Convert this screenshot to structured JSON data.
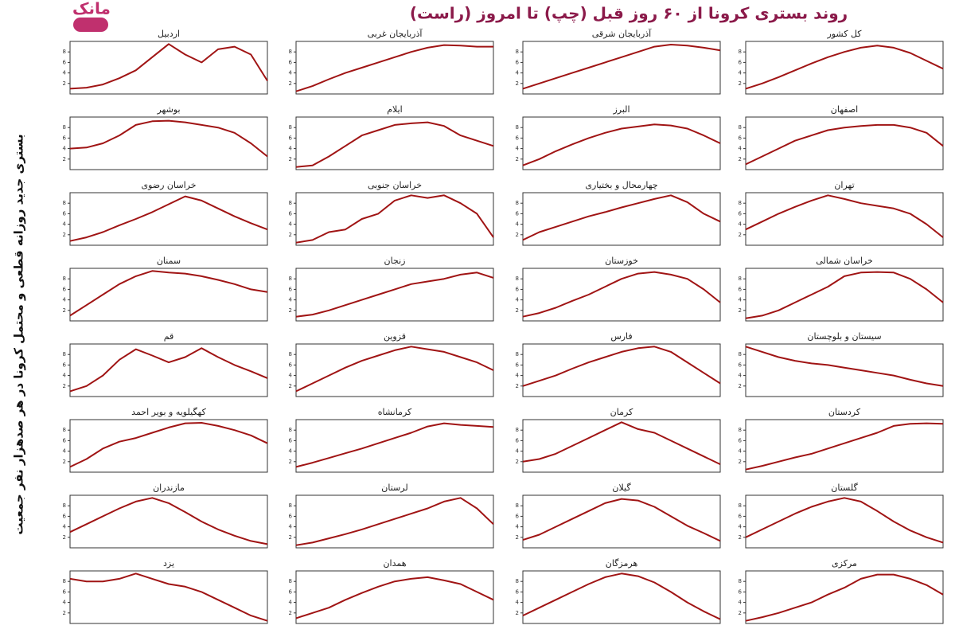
{
  "title": "روند بستری کرونا از ۶۰ روز قبل (چپ) تا امروز (راست)",
  "y_label": "بستری جدید روزانه قطعی و محتمل کرونا در هر صدهزار نفر جمعیت",
  "logo": "مانک",
  "chart_data": [
    {
      "type": "line",
      "title": "کل کشور",
      "color": "#a01414",
      "ylim": [
        0,
        10
      ],
      "yticks": [
        2,
        4,
        6,
        8
      ],
      "values": [
        1,
        2,
        3.2,
        4.5,
        5.8,
        7,
        8,
        8.8,
        9.2,
        8.8,
        7.8,
        6.3,
        4.8
      ]
    },
    {
      "type": "line",
      "title": "آذربایجان شرقی",
      "color": "#a01414",
      "ylim": [
        0,
        10
      ],
      "yticks": [
        2,
        4,
        6,
        8
      ],
      "values": [
        1,
        2,
        3,
        4,
        5,
        6,
        7,
        8,
        9,
        9.4,
        9.2,
        8.8,
        8.3
      ]
    },
    {
      "type": "line",
      "title": "آذربایجان غربی",
      "color": "#a01414",
      "ylim": [
        0,
        10
      ],
      "yticks": [
        2,
        4,
        6,
        8
      ],
      "values": [
        0.5,
        1.5,
        2.8,
        4,
        5,
        6,
        7,
        8,
        8.8,
        9.3,
        9.2,
        9,
        9
      ]
    },
    {
      "type": "line",
      "title": "اردبیل",
      "color": "#a01414",
      "ylim": [
        0,
        10
      ],
      "yticks": [
        2,
        4,
        6,
        8
      ],
      "values": [
        1,
        1.2,
        1.8,
        3,
        4.5,
        7,
        9.5,
        7.5,
        6,
        8.5,
        9,
        7.5,
        2.5
      ]
    },
    {
      "type": "line",
      "title": "اصفهان",
      "color": "#a01414",
      "ylim": [
        0,
        10
      ],
      "yticks": [
        2,
        4,
        6,
        8
      ],
      "values": [
        1,
        2.5,
        4,
        5.5,
        6.5,
        7.5,
        8,
        8.3,
        8.5,
        8.5,
        8,
        7,
        4.5
      ]
    },
    {
      "type": "line",
      "title": "البرز",
      "color": "#a01414",
      "ylim": [
        0,
        10
      ],
      "yticks": [
        2,
        4,
        6,
        8
      ],
      "values": [
        0.8,
        2,
        3.5,
        4.8,
        6,
        7,
        7.8,
        8.2,
        8.6,
        8.4,
        7.8,
        6.5,
        5
      ]
    },
    {
      "type": "line",
      "title": "ایلام",
      "color": "#a01414",
      "ylim": [
        0,
        10
      ],
      "yticks": [
        2,
        4,
        6,
        8
      ],
      "values": [
        0.5,
        0.8,
        2.5,
        4.5,
        6.5,
        7.5,
        8.5,
        8.8,
        9,
        8.3,
        6.5,
        5.5,
        4.5
      ]
    },
    {
      "type": "line",
      "title": "بوشهر",
      "color": "#a01414",
      "ylim": [
        0,
        10
      ],
      "yticks": [
        2,
        4,
        6,
        8
      ],
      "values": [
        4,
        4.2,
        5,
        6.5,
        8.5,
        9.2,
        9.3,
        9,
        8.5,
        8,
        7,
        5,
        2.5
      ]
    },
    {
      "type": "line",
      "title": "تهران",
      "color": "#a01414",
      "ylim": [
        0,
        10
      ],
      "yticks": [
        2,
        4,
        6,
        8
      ],
      "values": [
        3,
        4.5,
        6,
        7.3,
        8.5,
        9.5,
        8.8,
        8,
        7.5,
        7,
        6,
        4,
        1.5
      ]
    },
    {
      "type": "line",
      "title": "چهارمحال و بختیاری",
      "color": "#a01414",
      "ylim": [
        0,
        10
      ],
      "yticks": [
        2,
        4,
        6,
        8
      ],
      "values": [
        1,
        2.5,
        3.5,
        4.5,
        5.5,
        6.3,
        7.2,
        8,
        8.8,
        9.5,
        8.2,
        6,
        4.5
      ]
    },
    {
      "type": "line",
      "title": "خراسان جنوبی",
      "color": "#a01414",
      "ylim": [
        0,
        10
      ],
      "yticks": [
        2,
        4,
        6,
        8
      ],
      "values": [
        0.5,
        1,
        2.5,
        3,
        5,
        6,
        8.5,
        9.5,
        9,
        9.5,
        8,
        6,
        1.5
      ]
    },
    {
      "type": "line",
      "title": "خراسان رضوی",
      "color": "#a01414",
      "ylim": [
        0,
        10
      ],
      "yticks": [
        2,
        4,
        6,
        8
      ],
      "values": [
        0.8,
        1.5,
        2.5,
        3.8,
        5,
        6.3,
        7.8,
        9.3,
        8.5,
        7,
        5.5,
        4.2,
        3
      ]
    },
    {
      "type": "line",
      "title": "خراسان شمالی",
      "color": "#a01414",
      "ylim": [
        0,
        10
      ],
      "yticks": [
        2,
        4,
        6,
        8
      ],
      "values": [
        0.5,
        1,
        2,
        3.5,
        5,
        6.5,
        8.5,
        9.2,
        9.3,
        9.2,
        8,
        6,
        3.5
      ]
    },
    {
      "type": "line",
      "title": "خوزستان",
      "color": "#a01414",
      "ylim": [
        0,
        10
      ],
      "yticks": [
        2,
        4,
        6,
        8
      ],
      "values": [
        0.8,
        1.5,
        2.5,
        3.8,
        5,
        6.5,
        8,
        9,
        9.3,
        8.8,
        8,
        6,
        3.5
      ]
    },
    {
      "type": "line",
      "title": "زنجان",
      "color": "#a01414",
      "ylim": [
        0,
        10
      ],
      "yticks": [
        2,
        4,
        6,
        8
      ],
      "values": [
        0.8,
        1.2,
        2,
        3,
        4,
        5,
        6,
        7,
        7.5,
        8,
        8.8,
        9.2,
        8.2
      ]
    },
    {
      "type": "line",
      "title": "سمنان",
      "color": "#a01414",
      "ylim": [
        0,
        10
      ],
      "yticks": [
        2,
        4,
        6,
        8
      ],
      "values": [
        1,
        3,
        5,
        7,
        8.5,
        9.5,
        9.2,
        9,
        8.5,
        7.8,
        7,
        6,
        5.5
      ]
    },
    {
      "type": "line",
      "title": "سیستان و بلوچستان",
      "color": "#a01414",
      "ylim": [
        0,
        10
      ],
      "yticks": [
        2,
        4,
        6,
        8
      ],
      "values": [
        9.5,
        8.5,
        7.5,
        6.8,
        6.3,
        6,
        5.5,
        5,
        4.5,
        4,
        3.2,
        2.5,
        2
      ]
    },
    {
      "type": "line",
      "title": "فارس",
      "color": "#a01414",
      "ylim": [
        0,
        10
      ],
      "yticks": [
        2,
        4,
        6,
        8
      ],
      "values": [
        2,
        3,
        4,
        5.3,
        6.5,
        7.5,
        8.5,
        9.2,
        9.5,
        8.5,
        6.5,
        4.5,
        2.5
      ]
    },
    {
      "type": "line",
      "title": "قزوین",
      "color": "#a01414",
      "ylim": [
        0,
        10
      ],
      "yticks": [
        2,
        4,
        6,
        8
      ],
      "values": [
        1,
        2.5,
        4,
        5.5,
        6.8,
        7.8,
        8.8,
        9.5,
        9,
        8.5,
        7.5,
        6.5,
        5
      ]
    },
    {
      "type": "line",
      "title": "قم",
      "color": "#a01414",
      "ylim": [
        0,
        10
      ],
      "yticks": [
        2,
        4,
        6,
        8
      ],
      "values": [
        1,
        2,
        4,
        7,
        9,
        7.8,
        6.5,
        7.5,
        9.2,
        7.5,
        6,
        4.8,
        3.5
      ]
    },
    {
      "type": "line",
      "title": "کردستان",
      "color": "#a01414",
      "ylim": [
        0,
        10
      ],
      "yticks": [
        2,
        4,
        6,
        8
      ],
      "values": [
        0.5,
        1.2,
        2,
        2.8,
        3.5,
        4.5,
        5.5,
        6.5,
        7.5,
        8.8,
        9.2,
        9.3,
        9.2
      ]
    },
    {
      "type": "line",
      "title": "کرمان",
      "color": "#a01414",
      "ylim": [
        0,
        10
      ],
      "yticks": [
        2,
        4,
        6,
        8
      ],
      "values": [
        2,
        2.5,
        3.5,
        5,
        6.5,
        8,
        9.5,
        8.2,
        7.5,
        6,
        4.5,
        3,
        1.5
      ]
    },
    {
      "type": "line",
      "title": "کرمانشاه",
      "color": "#a01414",
      "ylim": [
        0,
        10
      ],
      "yticks": [
        2,
        4,
        6,
        8
      ],
      "values": [
        1,
        1.8,
        2.7,
        3.6,
        4.5,
        5.5,
        6.5,
        7.5,
        8.7,
        9.3,
        9,
        8.8,
        8.6
      ]
    },
    {
      "type": "line",
      "title": "کهگیلویه و بویر احمد",
      "color": "#a01414",
      "ylim": [
        0,
        10
      ],
      "yticks": [
        2,
        4,
        6,
        8
      ],
      "values": [
        1,
        2.5,
        4.5,
        5.8,
        6.5,
        7.5,
        8.5,
        9.3,
        9.4,
        8.8,
        8,
        7,
        5.5
      ]
    },
    {
      "type": "line",
      "title": "گلستان",
      "color": "#a01414",
      "ylim": [
        0,
        10
      ],
      "yticks": [
        2,
        4,
        6,
        8
      ],
      "values": [
        2,
        3.5,
        5,
        6.5,
        7.8,
        8.8,
        9.5,
        8.8,
        7,
        5,
        3.3,
        2,
        1
      ]
    },
    {
      "type": "line",
      "title": "گیلان",
      "color": "#a01414",
      "ylim": [
        0,
        10
      ],
      "yticks": [
        2,
        4,
        6,
        8
      ],
      "values": [
        1.5,
        2.5,
        4,
        5.5,
        7,
        8.5,
        9.3,
        9,
        7.8,
        6,
        4.2,
        2.8,
        1.3
      ]
    },
    {
      "type": "line",
      "title": "لرستان",
      "color": "#a01414",
      "ylim": [
        0,
        10
      ],
      "yticks": [
        2,
        4,
        6,
        8
      ],
      "values": [
        0.5,
        1,
        1.8,
        2.6,
        3.5,
        4.5,
        5.5,
        6.5,
        7.5,
        8.8,
        9.5,
        7.5,
        4.5
      ]
    },
    {
      "type": "line",
      "title": "مازندران",
      "color": "#a01414",
      "ylim": [
        0,
        10
      ],
      "yticks": [
        2,
        4,
        6,
        8
      ],
      "values": [
        3,
        4.5,
        6,
        7.5,
        8.8,
        9.5,
        8.5,
        6.8,
        5,
        3.5,
        2.3,
        1.3,
        0.7
      ]
    },
    {
      "type": "line",
      "title": "مرکزی",
      "color": "#a01414",
      "ylim": [
        0,
        10
      ],
      "yticks": [
        2,
        4,
        6,
        8
      ],
      "values": [
        0.5,
        1.2,
        2,
        3,
        4,
        5.5,
        6.8,
        8.5,
        9.3,
        9.3,
        8.5,
        7.3,
        5.5
      ]
    },
    {
      "type": "line",
      "title": "هرمزگان",
      "color": "#a01414",
      "ylim": [
        0,
        10
      ],
      "yticks": [
        2,
        4,
        6,
        8
      ],
      "values": [
        1.5,
        3,
        4.5,
        6,
        7.5,
        8.8,
        9.5,
        9,
        7.8,
        6,
        4,
        2.3,
        0.8
      ]
    },
    {
      "type": "line",
      "title": "همدان",
      "color": "#a01414",
      "ylim": [
        0,
        10
      ],
      "yticks": [
        2,
        4,
        6,
        8
      ],
      "values": [
        1,
        2,
        3,
        4.5,
        5.8,
        7,
        8,
        8.5,
        8.8,
        8.2,
        7.5,
        6,
        4.5
      ]
    },
    {
      "type": "line",
      "title": "یزد",
      "color": "#a01414",
      "ylim": [
        0,
        10
      ],
      "yticks": [
        2,
        4,
        6,
        8
      ],
      "values": [
        8.5,
        8,
        8,
        8.5,
        9.5,
        8.5,
        7.5,
        7,
        6,
        4.5,
        3,
        1.5,
        0.5
      ]
    }
  ]
}
